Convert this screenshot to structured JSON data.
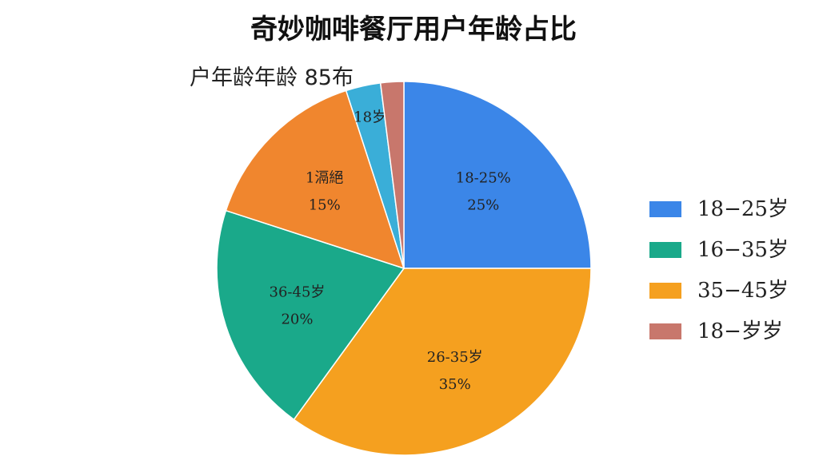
{
  "chart_data": {
    "type": "pie",
    "title": "奇妙咖啡餐厅用户年龄占比",
    "subtitle": "户年龄年龄 85布",
    "categories": [
      "18-25%",
      "26-35岁",
      "36-45岁",
      "1滆絕",
      "18岁",
      null
    ],
    "values": [
      25,
      35,
      20,
      15,
      3,
      2
    ],
    "value_labels": [
      "25%",
      "35%",
      "20%",
      "15%",
      null,
      null
    ],
    "colors": [
      "#3b86e8",
      "#f5a01f",
      "#1aa98a",
      "#f0862e",
      "#3aaed8",
      "#c8776c"
    ],
    "legend": [
      {
        "label": "18−25岁",
        "color": "#3b86e8"
      },
      {
        "label": "16−35岁",
        "color": "#1aa98a"
      },
      {
        "label": "35−45岁",
        "color": "#f5a01f"
      },
      {
        "label": "18−岁岁",
        "color": "#c8776c"
      }
    ]
  }
}
